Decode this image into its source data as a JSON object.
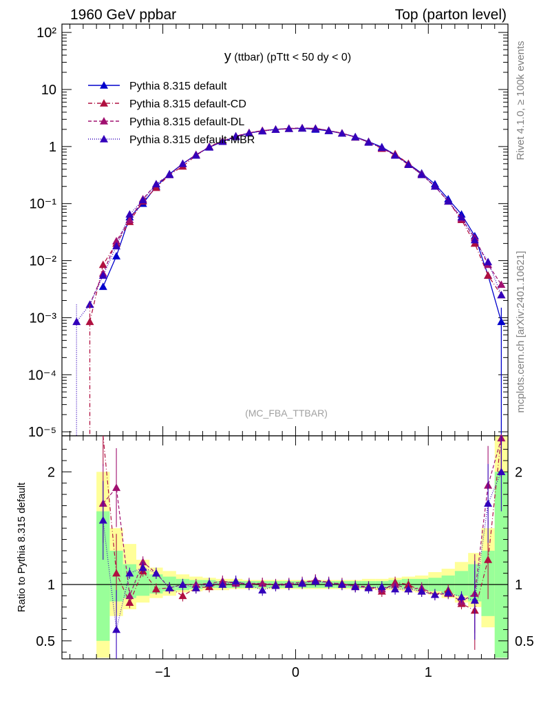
{
  "header": {
    "left": "1960 GeV ppbar",
    "right": "Top (parton level)"
  },
  "side_labels": {
    "rivet": "Rivet 4.1.0, ≥ 100k events",
    "mcplots": "mcplots.cern.ch [arXiv:2401.10621]"
  },
  "chart_data": [
    {
      "type": "line",
      "panel": "main",
      "title": "y (ttbar) (pTtt < 50 dy < 0)",
      "title_main": "y",
      "title_rest": "(ttbar) (pTtt < 50 dy < 0)",
      "watermark": "(MC_FBA_TTBAR)",
      "xlabel": "",
      "ylabel": "",
      "yscale": "log",
      "xlim": [
        -1.76,
        1.6
      ],
      "ylim": [
        8.5e-06,
        140
      ],
      "y_ticks": [
        {
          "value": 1e-05,
          "label": "10⁻⁵"
        },
        {
          "value": 0.0001,
          "label": "10⁻⁴"
        },
        {
          "value": 0.001,
          "label": "10⁻³"
        },
        {
          "value": 0.01,
          "label": "10⁻²"
        },
        {
          "value": 0.1,
          "label": "10⁻¹"
        },
        {
          "value": 1,
          "label": "1"
        },
        {
          "value": 10,
          "label": "10"
        },
        {
          "value": 100,
          "label": "10²"
        }
      ],
      "x": [
        -1.65,
        -1.55,
        -1.45,
        -1.35,
        -1.25,
        -1.15,
        -1.05,
        -0.95,
        -0.85,
        -0.75,
        -0.65,
        -0.55,
        -0.45,
        -0.35,
        -0.25,
        -0.15,
        -0.05,
        0.05,
        0.15,
        0.25,
        0.35,
        0.45,
        0.55,
        0.65,
        0.75,
        0.85,
        0.95,
        1.05,
        1.15,
        1.25,
        1.35,
        1.45,
        1.55
      ],
      "series": [
        {
          "name": "Pythia 8.315 default",
          "color": "#0000cc",
          "dash": "",
          "values": [
            null,
            null,
            0.0035,
            0.012,
            0.058,
            0.1,
            0.2,
            0.33,
            0.5,
            0.72,
            0.97,
            1.22,
            1.48,
            1.72,
            1.88,
            2.0,
            2.06,
            2.08,
            2.0,
            1.88,
            1.7,
            1.48,
            1.22,
            0.98,
            0.72,
            0.5,
            0.34,
            0.22,
            0.12,
            0.065,
            0.027,
            0.0055,
            0.00085
          ]
        },
        {
          "name": "Pythia 8.315 default-CD",
          "color": "#b01040",
          "dash": "6,3,1,3",
          "values": [
            null,
            0.00085,
            0.0085,
            0.02,
            0.048,
            0.11,
            0.19,
            0.32,
            0.45,
            0.7,
            1.0,
            1.25,
            1.52,
            1.75,
            1.9,
            1.98,
            2.06,
            2.1,
            2.08,
            1.9,
            1.72,
            1.45,
            1.2,
            0.92,
            0.74,
            0.5,
            0.32,
            0.2,
            0.11,
            0.052,
            0.02,
            0.0055,
            0.0025
          ]
        },
        {
          "name": "Pythia 8.315 default-DL",
          "color": "#a01070",
          "dash": "5,3",
          "values": [
            null,
            0.0017,
            0.006,
            0.022,
            0.052,
            0.12,
            0.22,
            0.32,
            0.5,
            0.72,
            0.98,
            1.25,
            1.5,
            1.74,
            1.9,
            2.0,
            2.08,
            2.12,
            2.08,
            1.92,
            1.7,
            1.46,
            1.2,
            0.94,
            0.7,
            0.48,
            0.33,
            0.2,
            0.11,
            0.055,
            0.025,
            0.0085,
            0.0038
          ]
        },
        {
          "name": "Pythia 8.315 default-MBR",
          "color": "#3300bb",
          "dash": "1,2",
          "values": [
            0.00085,
            0.0017,
            0.0055,
            0.018,
            0.065,
            0.115,
            0.22,
            0.32,
            0.5,
            0.7,
            0.98,
            1.22,
            1.52,
            1.72,
            1.86,
            1.98,
            2.06,
            2.1,
            2.06,
            1.9,
            1.7,
            1.46,
            1.18,
            0.96,
            0.7,
            0.48,
            0.32,
            0.2,
            0.11,
            0.058,
            0.023,
            0.0095,
            0.0025
          ]
        }
      ]
    },
    {
      "type": "line",
      "panel": "ratio",
      "ylabel": "Ratio to Pythia 8.315 default",
      "xlabel": "",
      "ylim": [
        0.34,
        2.32
      ],
      "xlim": [
        -1.76,
        1.6
      ],
      "y_ticks": [
        {
          "value": 0.5,
          "label": "0.5"
        },
        {
          "value": 1,
          "label": "1"
        },
        {
          "value": 2,
          "label": "2"
        }
      ],
      "x_ticks": [
        {
          "value": -1,
          "label": "−1"
        },
        {
          "value": 0,
          "label": "0"
        },
        {
          "value": 1,
          "label": "1"
        }
      ],
      "bands": {
        "x_lo": [
          -1.5,
          -1.4,
          -1.3,
          -1.2,
          -1.1,
          -1.0,
          -0.9,
          -0.8,
          -0.7,
          -0.6,
          -0.5,
          -0.4,
          -0.3,
          -0.2,
          -0.1,
          0.0,
          0.1,
          0.2,
          0.3,
          0.4,
          0.5,
          0.6,
          0.7,
          0.8,
          0.9,
          1.0,
          1.1,
          1.2,
          1.3,
          1.4,
          1.5
        ],
        "yellow_lo": [
          0.35,
          0.72,
          0.78,
          0.84,
          0.88,
          0.9,
          0.93,
          0.94,
          0.95,
          0.95,
          0.96,
          0.96,
          0.96,
          0.96,
          0.96,
          0.96,
          0.96,
          0.96,
          0.96,
          0.96,
          0.96,
          0.95,
          0.95,
          0.94,
          0.93,
          0.91,
          0.88,
          0.84,
          0.8,
          0.62,
          0.35
        ],
        "yellow_hi": [
          2.0,
          1.5,
          1.36,
          1.22,
          1.15,
          1.12,
          1.09,
          1.07,
          1.06,
          1.05,
          1.05,
          1.04,
          1.04,
          1.04,
          1.04,
          1.04,
          1.04,
          1.04,
          1.04,
          1.04,
          1.05,
          1.05,
          1.06,
          1.07,
          1.08,
          1.11,
          1.14,
          1.2,
          1.28,
          1.5,
          2.32
        ],
        "green_lo": [
          0.5,
          0.85,
          0.88,
          0.9,
          0.92,
          0.94,
          0.95,
          0.96,
          0.97,
          0.97,
          0.97,
          0.97,
          0.97,
          0.97,
          0.97,
          0.97,
          0.97,
          0.97,
          0.97,
          0.97,
          0.97,
          0.97,
          0.97,
          0.96,
          0.95,
          0.94,
          0.92,
          0.9,
          0.85,
          0.72,
          0.35
        ],
        "green_hi": [
          1.65,
          1.3,
          1.18,
          1.12,
          1.09,
          1.07,
          1.05,
          1.04,
          1.04,
          1.03,
          1.03,
          1.03,
          1.03,
          1.03,
          1.03,
          1.03,
          1.03,
          1.03,
          1.03,
          1.03,
          1.03,
          1.03,
          1.04,
          1.05,
          1.05,
          1.06,
          1.08,
          1.12,
          1.18,
          1.3,
          2.0
        ]
      },
      "x": [
        -1.45,
        -1.35,
        -1.25,
        -1.15,
        -1.05,
        -0.95,
        -0.85,
        -0.75,
        -0.65,
        -0.55,
        -0.45,
        -0.35,
        -0.25,
        -0.15,
        -0.05,
        0.05,
        0.15,
        0.25,
        0.35,
        0.45,
        0.55,
        0.65,
        0.75,
        0.85,
        0.95,
        1.05,
        1.15,
        1.25,
        1.35,
        1.45,
        1.55
      ],
      "series": [
        {
          "name": "Pythia 8.315 default-CD",
          "color": "#b01040",
          "dash": "6,3,1,3",
          "values": [
            2.4,
            1.1,
            0.84,
            1.12,
            0.96,
            0.97,
            0.9,
            0.97,
            0.98,
            1.02,
            1.02,
            1.0,
            1.01,
            0.99,
            1.0,
            1.01,
            1.04,
            1.01,
            1.01,
            0.98,
            0.98,
            0.94,
            1.02,
            1.0,
            0.94,
            0.91,
            0.95,
            0.83,
            0.77,
            1.22,
            2.35
          ]
        },
        {
          "name": "Pythia 8.315 default-DL",
          "color": "#a01070",
          "dash": "5,3",
          "values": [
            1.72,
            1.86,
            0.9,
            1.2,
            1.1,
            0.97,
            1.0,
            1.0,
            1.01,
            1.03,
            1.01,
            1.01,
            1.01,
            1.0,
            1.01,
            1.02,
            1.04,
            1.02,
            1.0,
            0.99,
            0.98,
            0.96,
            1.0,
            0.96,
            0.97,
            0.91,
            0.92,
            0.85,
            0.92,
            1.88,
            2.3
          ]
        },
        {
          "name": "Pythia 8.315 default-MBR",
          "color": "#3300bb",
          "dash": "1,2",
          "values": [
            1.57,
            0.6,
            1.1,
            1.15,
            1.1,
            0.97,
            1.0,
            0.97,
            1.01,
            1.0,
            1.03,
            1.0,
            0.95,
            0.99,
            1.0,
            1.01,
            1.03,
            1.01,
            1.0,
            0.98,
            0.97,
            0.98,
            0.96,
            0.96,
            0.94,
            0.91,
            0.93,
            0.89,
            0.86,
            1.72,
            2.0
          ]
        }
      ]
    }
  ]
}
